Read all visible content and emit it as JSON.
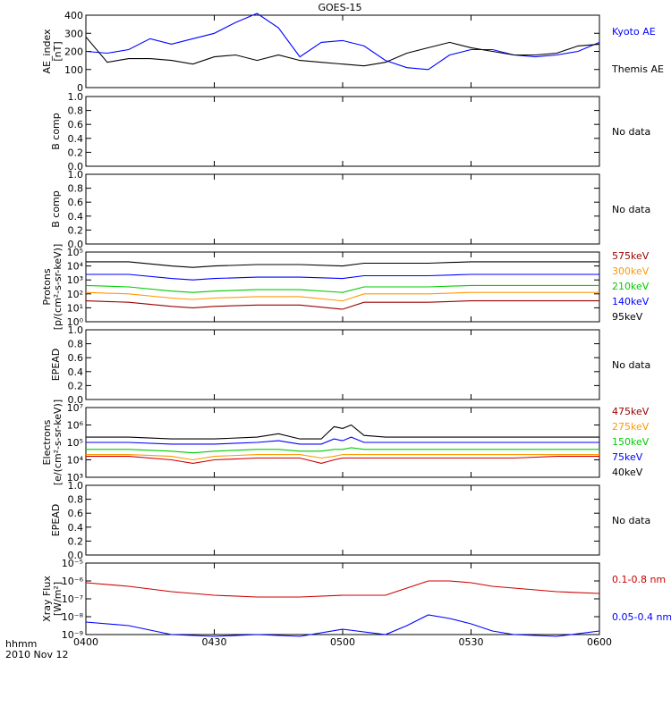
{
  "title": "GOES-15",
  "footer": {
    "time_label": "hhmm",
    "date_label": "2010 Nov 12"
  },
  "x_ticks": [
    "0400",
    "0430",
    "0500",
    "0530",
    "0600"
  ],
  "colors": {
    "black": "#000000",
    "blue": "#0000ff",
    "red": "#cc0000",
    "orange": "#ff9900",
    "green": "#00cc00",
    "darkred": "#990000"
  },
  "chart_data": [
    {
      "id": "ae",
      "type": "line",
      "ylabel": [
        "AE_index",
        "[nT]"
      ],
      "ylim": [
        0,
        400
      ],
      "ytick_labels": [
        "0",
        "100",
        "200",
        "300",
        "400"
      ],
      "x": [
        0,
        5,
        10,
        15,
        20,
        25,
        30,
        35,
        40,
        45,
        50,
        55,
        60,
        65,
        70,
        75,
        80,
        85,
        90,
        95,
        100,
        105,
        110,
        115,
        120
      ],
      "series": [
        {
          "name": "Kyoto AE",
          "color": "#0000ff",
          "values": [
            200,
            190,
            210,
            270,
            240,
            270,
            300,
            360,
            410,
            330,
            170,
            250,
            260,
            230,
            150,
            110,
            100,
            180,
            210,
            210,
            180,
            170,
            180,
            200,
            250
          ]
        },
        {
          "name": "Themis AE",
          "color": "#000000",
          "values": [
            280,
            140,
            160,
            160,
            150,
            130,
            170,
            180,
            150,
            180,
            150,
            140,
            130,
            120,
            140,
            190,
            220,
            250,
            220,
            200,
            180,
            180,
            190,
            230,
            240
          ]
        }
      ],
      "legend": [
        {
          "text": "Kyoto AE",
          "color": "#0000ff"
        },
        {
          "text": "Themis AE",
          "color": "#000000"
        }
      ]
    },
    {
      "id": "bcomp1",
      "type": "line",
      "ylabel": [
        "B comp"
      ],
      "ylim": [
        0,
        1
      ],
      "ytick_labels": [
        "0.0",
        "0.2",
        "0.4",
        "0.6",
        "0.8",
        "1.0"
      ],
      "series": [],
      "legend": [
        {
          "text": "No data",
          "color": "#000000"
        }
      ]
    },
    {
      "id": "bcomp2",
      "type": "line",
      "ylabel": [
        "B comp"
      ],
      "ylim": [
        0,
        1
      ],
      "ytick_labels": [
        "0.0",
        "0.2",
        "0.4",
        "0.6",
        "0.8",
        "1.0"
      ],
      "series": [],
      "legend": [
        {
          "text": "No data",
          "color": "#000000"
        }
      ]
    },
    {
      "id": "protons",
      "type": "line",
      "ylabel": [
        "Protons",
        "[p/(cm²-s-sr-keV)]"
      ],
      "log": true,
      "ylim_exp": [
        0,
        5
      ],
      "ytick_labels": [
        "10⁰",
        "10¹",
        "10²",
        "10³",
        "10⁴",
        "10⁵"
      ],
      "x": [
        0,
        10,
        20,
        25,
        30,
        40,
        50,
        60,
        65,
        70,
        80,
        90,
        100,
        110,
        120
      ],
      "series": [
        {
          "name": "575keV",
          "color": "#000000",
          "values": [
            4.3,
            4.3,
            4.0,
            3.9,
            4.0,
            4.1,
            4.1,
            4.0,
            4.2,
            4.2,
            4.2,
            4.3,
            4.3,
            4.3,
            4.3
          ]
        },
        {
          "name": "300keV",
          "color": "#0000ff",
          "values": [
            3.4,
            3.4,
            3.1,
            3.0,
            3.1,
            3.2,
            3.2,
            3.1,
            3.3,
            3.3,
            3.3,
            3.4,
            3.4,
            3.4,
            3.4
          ]
        },
        {
          "name": "210keV",
          "color": "#00cc00",
          "values": [
            2.6,
            2.5,
            2.2,
            2.1,
            2.2,
            2.3,
            2.3,
            2.1,
            2.5,
            2.5,
            2.5,
            2.6,
            2.6,
            2.6,
            2.6
          ]
        },
        {
          "name": "140keV",
          "color": "#ff9900",
          "values": [
            2.1,
            2.0,
            1.7,
            1.6,
            1.7,
            1.8,
            1.8,
            1.5,
            2.0,
            2.0,
            2.0,
            2.1,
            2.1,
            2.1,
            2.1
          ]
        },
        {
          "name": "95keV",
          "color": "#990000",
          "values": [
            1.5,
            1.4,
            1.1,
            1.0,
            1.1,
            1.2,
            1.2,
            0.9,
            1.4,
            1.4,
            1.4,
            1.5,
            1.5,
            1.5,
            1.5
          ]
        }
      ],
      "legend": [
        {
          "text": "575keV",
          "color": "#990000"
        },
        {
          "text": "300keV",
          "color": "#ff9900"
        },
        {
          "text": "210keV",
          "color": "#00cc00"
        },
        {
          "text": "140keV",
          "color": "#0000ff"
        },
        {
          "text": "95keV",
          "color": "#000000"
        }
      ]
    },
    {
      "id": "epead1",
      "type": "line",
      "ylabel": [
        "EPEAD"
      ],
      "ylim": [
        0,
        1
      ],
      "ytick_labels": [
        "0.0",
        "0.2",
        "0.4",
        "0.6",
        "0.8",
        "1.0"
      ],
      "series": [],
      "legend": [
        {
          "text": "No data",
          "color": "#000000"
        }
      ]
    },
    {
      "id": "electrons",
      "type": "line",
      "ylabel": [
        "Electrons",
        "[e/(cm²-s-sr-keV)]"
      ],
      "log": true,
      "ylim_exp": [
        3,
        7
      ],
      "ytick_labels": [
        "10³",
        "10⁴",
        "10⁵",
        "10⁶",
        "10⁷"
      ],
      "x": [
        0,
        10,
        20,
        25,
        30,
        40,
        45,
        50,
        55,
        58,
        60,
        62,
        65,
        70,
        80,
        90,
        100,
        110,
        120
      ],
      "series": [
        {
          "name": "475keV",
          "color": "#000000",
          "values": [
            5.3,
            5.3,
            5.2,
            5.2,
            5.2,
            5.3,
            5.5,
            5.2,
            5.2,
            5.9,
            5.8,
            6.0,
            5.4,
            5.3,
            5.3,
            5.3,
            5.3,
            5.3,
            5.3
          ]
        },
        {
          "name": "275keV",
          "color": "#0000ff",
          "values": [
            5.0,
            5.0,
            4.9,
            4.9,
            4.9,
            5.0,
            5.1,
            4.9,
            4.9,
            5.2,
            5.1,
            5.3,
            5.0,
            5.0,
            5.0,
            5.0,
            5.0,
            5.0,
            5.0
          ]
        },
        {
          "name": "150keV",
          "color": "#00cc00",
          "values": [
            4.6,
            4.6,
            4.5,
            4.4,
            4.5,
            4.6,
            4.6,
            4.5,
            4.5,
            4.6,
            4.6,
            4.7,
            4.6,
            4.6,
            4.6,
            4.6,
            4.6,
            4.6,
            4.6
          ]
        },
        {
          "name": "75keV",
          "color": "#ff9900",
          "values": [
            4.3,
            4.3,
            4.2,
            4.0,
            4.2,
            4.3,
            4.3,
            4.3,
            4.1,
            4.2,
            4.3,
            4.3,
            4.3,
            4.3,
            4.3,
            4.3,
            4.3,
            4.3,
            4.3
          ]
        },
        {
          "name": "40keV",
          "color": "#cc0000",
          "values": [
            4.2,
            4.2,
            4.0,
            3.8,
            4.0,
            4.1,
            4.1,
            4.1,
            3.8,
            4.0,
            4.1,
            4.1,
            4.1,
            4.1,
            4.1,
            4.1,
            4.1,
            4.2,
            4.2
          ]
        }
      ],
      "legend": [
        {
          "text": "475keV",
          "color": "#990000"
        },
        {
          "text": "275keV",
          "color": "#ff9900"
        },
        {
          "text": "150keV",
          "color": "#00cc00"
        },
        {
          "text": "75keV",
          "color": "#0000ff"
        },
        {
          "text": "40keV",
          "color": "#000000"
        }
      ]
    },
    {
      "id": "epead2",
      "type": "line",
      "ylabel": [
        "EPEAD"
      ],
      "ylim": [
        0,
        1
      ],
      "ytick_labels": [
        "0.0",
        "0.2",
        "0.4",
        "0.6",
        "0.8",
        "1.0"
      ],
      "series": [],
      "legend": [
        {
          "text": "No data",
          "color": "#000000"
        }
      ]
    },
    {
      "id": "xray",
      "type": "line",
      "ylabel": [
        "Xray Flux",
        "[W/m²]"
      ],
      "log": true,
      "ylim_exp": [
        -9,
        -5
      ],
      "ytick_labels": [
        "10⁻⁹",
        "10⁻⁸",
        "10⁻⁷",
        "10⁻⁶",
        "10⁻⁵"
      ],
      "x": [
        0,
        10,
        20,
        30,
        40,
        50,
        60,
        70,
        75,
        80,
        85,
        90,
        95,
        100,
        110,
        120
      ],
      "series": [
        {
          "name": "0.1-0.8 nm",
          "color": "#cc0000",
          "values": [
            -6.1,
            -6.3,
            -6.6,
            -6.8,
            -6.9,
            -6.9,
            -6.8,
            -6.8,
            -6.4,
            -6.0,
            -6.0,
            -6.1,
            -6.3,
            -6.4,
            -6.6,
            -6.7
          ]
        },
        {
          "name": "0.05-0.4 nm",
          "color": "#0000ff",
          "values": [
            -8.3,
            -8.5,
            -9.0,
            -9.1,
            -9.0,
            -9.1,
            -8.7,
            -9.0,
            -8.5,
            -7.9,
            -8.1,
            -8.4,
            -8.8,
            -9.0,
            -9.1,
            -8.8
          ]
        }
      ],
      "legend": [
        {
          "text": "0.1-0.8 nm",
          "color": "#cc0000"
        },
        {
          "text": "0.05-0.4 nm",
          "color": "#0000ff"
        }
      ]
    }
  ]
}
